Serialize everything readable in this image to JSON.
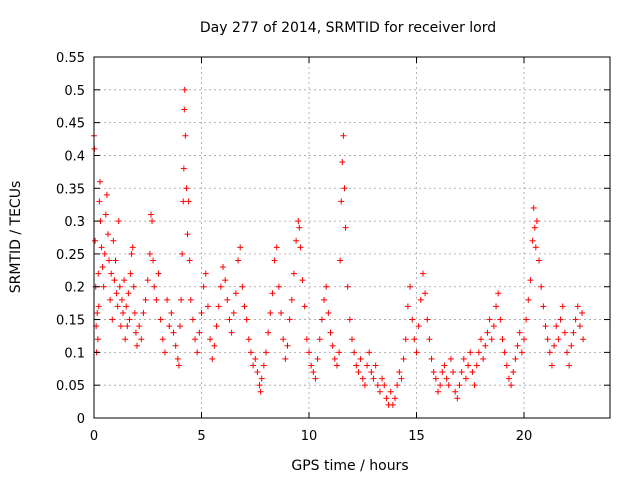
{
  "chart_data": {
    "type": "scatter",
    "title": "Day 277 of 2014, SRMTID for receiver lord",
    "xlabel": "GPS time / hours",
    "ylabel": "SRMTID / TECUs",
    "xlim": [
      0,
      24
    ],
    "ylim": [
      0,
      0.55
    ],
    "xticks": [
      0,
      5,
      10,
      15,
      20
    ],
    "xtick_labels": [
      "0",
      "5",
      "10",
      "15",
      "20"
    ],
    "yticks": [
      0,
      0.05,
      0.1,
      0.15,
      0.2,
      0.25,
      0.3,
      0.35,
      0.4,
      0.45,
      0.5,
      0.55
    ],
    "ytick_labels": [
      "0",
      "0.05",
      "0.1",
      "0.15",
      "0.2",
      "0.25",
      "0.3",
      "0.35",
      "0.4",
      "0.45",
      "0.5",
      "0.55"
    ],
    "grid": true,
    "marker": "+",
    "color": "#ff0000",
    "series": [
      {
        "name": "SRMTID",
        "points": [
          [
            0.0,
            0.43
          ],
          [
            0.02,
            0.41
          ],
          [
            0.05,
            0.27
          ],
          [
            0.08,
            0.2
          ],
          [
            0.1,
            0.14
          ],
          [
            0.12,
            0.1
          ],
          [
            0.15,
            0.16
          ],
          [
            0.18,
            0.12
          ],
          [
            0.2,
            0.22
          ],
          [
            0.22,
            0.17
          ],
          [
            0.25,
            0.33
          ],
          [
            0.28,
            0.36
          ],
          [
            0.3,
            0.3
          ],
          [
            0.35,
            0.26
          ],
          [
            0.4,
            0.23
          ],
          [
            0.45,
            0.2
          ],
          [
            0.5,
            0.25
          ],
          [
            0.55,
            0.31
          ],
          [
            0.6,
            0.34
          ],
          [
            0.65,
            0.28
          ],
          [
            0.7,
            0.24
          ],
          [
            0.75,
            0.18
          ],
          [
            0.8,
            0.22
          ],
          [
            0.85,
            0.15
          ],
          [
            0.9,
            0.27
          ],
          [
            0.95,
            0.21
          ],
          [
            1.0,
            0.24
          ],
          [
            1.05,
            0.19
          ],
          [
            1.1,
            0.17
          ],
          [
            1.15,
            0.3
          ],
          [
            1.2,
            0.2
          ],
          [
            1.25,
            0.14
          ],
          [
            1.3,
            0.18
          ],
          [
            1.35,
            0.16
          ],
          [
            1.4,
            0.21
          ],
          [
            1.45,
            0.12
          ],
          [
            1.5,
            0.17
          ],
          [
            1.55,
            0.14
          ],
          [
            1.6,
            0.19
          ],
          [
            1.65,
            0.15
          ],
          [
            1.7,
            0.22
          ],
          [
            1.75,
            0.25
          ],
          [
            1.8,
            0.26
          ],
          [
            1.85,
            0.2
          ],
          [
            1.9,
            0.16
          ],
          [
            1.95,
            0.13
          ],
          [
            2.0,
            0.11
          ],
          [
            2.1,
            0.14
          ],
          [
            2.2,
            0.12
          ],
          [
            2.3,
            0.16
          ],
          [
            2.4,
            0.18
          ],
          [
            2.5,
            0.21
          ],
          [
            2.6,
            0.25
          ],
          [
            2.65,
            0.31
          ],
          [
            2.7,
            0.3
          ],
          [
            2.75,
            0.24
          ],
          [
            2.8,
            0.2
          ],
          [
            2.9,
            0.18
          ],
          [
            3.0,
            0.22
          ],
          [
            3.1,
            0.15
          ],
          [
            3.2,
            0.12
          ],
          [
            3.3,
            0.1
          ],
          [
            3.4,
            0.18
          ],
          [
            3.5,
            0.14
          ],
          [
            3.6,
            0.16
          ],
          [
            3.7,
            0.13
          ],
          [
            3.8,
            0.11
          ],
          [
            3.9,
            0.09
          ],
          [
            3.95,
            0.08
          ],
          [
            4.0,
            0.14
          ],
          [
            4.05,
            0.18
          ],
          [
            4.1,
            0.25
          ],
          [
            4.15,
            0.33
          ],
          [
            4.18,
            0.38
          ],
          [
            4.2,
            0.47
          ],
          [
            4.22,
            0.5
          ],
          [
            4.25,
            0.43
          ],
          [
            4.3,
            0.35
          ],
          [
            4.35,
            0.28
          ],
          [
            4.4,
            0.33
          ],
          [
            4.45,
            0.24
          ],
          [
            4.5,
            0.18
          ],
          [
            4.6,
            0.15
          ],
          [
            4.7,
            0.12
          ],
          [
            4.8,
            0.1
          ],
          [
            4.9,
            0.13
          ],
          [
            5.0,
            0.16
          ],
          [
            5.1,
            0.2
          ],
          [
            5.2,
            0.22
          ],
          [
            5.3,
            0.17
          ],
          [
            5.4,
            0.12
          ],
          [
            5.5,
            0.09
          ],
          [
            5.6,
            0.11
          ],
          [
            5.7,
            0.14
          ],
          [
            5.8,
            0.17
          ],
          [
            5.9,
            0.2
          ],
          [
            6.0,
            0.23
          ],
          [
            6.1,
            0.21
          ],
          [
            6.2,
            0.18
          ],
          [
            6.3,
            0.15
          ],
          [
            6.4,
            0.13
          ],
          [
            6.5,
            0.16
          ],
          [
            6.6,
            0.19
          ],
          [
            6.7,
            0.24
          ],
          [
            6.8,
            0.26
          ],
          [
            6.9,
            0.2
          ],
          [
            7.0,
            0.17
          ],
          [
            7.1,
            0.15
          ],
          [
            7.2,
            0.12
          ],
          [
            7.3,
            0.1
          ],
          [
            7.4,
            0.08
          ],
          [
            7.5,
            0.09
          ],
          [
            7.6,
            0.07
          ],
          [
            7.7,
            0.05
          ],
          [
            7.75,
            0.04
          ],
          [
            7.8,
            0.06
          ],
          [
            7.9,
            0.08
          ],
          [
            8.0,
            0.1
          ],
          [
            8.1,
            0.13
          ],
          [
            8.2,
            0.16
          ],
          [
            8.3,
            0.19
          ],
          [
            8.4,
            0.24
          ],
          [
            8.5,
            0.26
          ],
          [
            8.6,
            0.2
          ],
          [
            8.7,
            0.16
          ],
          [
            8.8,
            0.12
          ],
          [
            8.9,
            0.09
          ],
          [
            9.0,
            0.11
          ],
          [
            9.1,
            0.15
          ],
          [
            9.2,
            0.18
          ],
          [
            9.3,
            0.22
          ],
          [
            9.4,
            0.27
          ],
          [
            9.5,
            0.3
          ],
          [
            9.55,
            0.29
          ],
          [
            9.6,
            0.26
          ],
          [
            9.7,
            0.21
          ],
          [
            9.8,
            0.17
          ],
          [
            9.9,
            0.12
          ],
          [
            10.0,
            0.1
          ],
          [
            10.1,
            0.08
          ],
          [
            10.2,
            0.07
          ],
          [
            10.3,
            0.06
          ],
          [
            10.4,
            0.09
          ],
          [
            10.5,
            0.12
          ],
          [
            10.6,
            0.15
          ],
          [
            10.7,
            0.18
          ],
          [
            10.8,
            0.2
          ],
          [
            10.9,
            0.16
          ],
          [
            11.0,
            0.13
          ],
          [
            11.1,
            0.11
          ],
          [
            11.2,
            0.09
          ],
          [
            11.3,
            0.08
          ],
          [
            11.4,
            0.1
          ],
          [
            11.45,
            0.24
          ],
          [
            11.5,
            0.33
          ],
          [
            11.55,
            0.39
          ],
          [
            11.6,
            0.43
          ],
          [
            11.65,
            0.35
          ],
          [
            11.7,
            0.29
          ],
          [
            11.8,
            0.2
          ],
          [
            11.9,
            0.15
          ],
          [
            12.0,
            0.12
          ],
          [
            12.1,
            0.1
          ],
          [
            12.2,
            0.08
          ],
          [
            12.3,
            0.07
          ],
          [
            12.4,
            0.09
          ],
          [
            12.5,
            0.06
          ],
          [
            12.6,
            0.05
          ],
          [
            12.7,
            0.08
          ],
          [
            12.8,
            0.1
          ],
          [
            12.9,
            0.07
          ],
          [
            13.0,
            0.06
          ],
          [
            13.1,
            0.08
          ],
          [
            13.2,
            0.05
          ],
          [
            13.3,
            0.04
          ],
          [
            13.4,
            0.06
          ],
          [
            13.5,
            0.05
          ],
          [
            13.6,
            0.03
          ],
          [
            13.7,
            0.02
          ],
          [
            13.8,
            0.04
          ],
          [
            13.9,
            0.02
          ],
          [
            14.0,
            0.03
          ],
          [
            14.1,
            0.05
          ],
          [
            14.2,
            0.07
          ],
          [
            14.3,
            0.06
          ],
          [
            14.4,
            0.09
          ],
          [
            14.5,
            0.12
          ],
          [
            14.6,
            0.17
          ],
          [
            14.7,
            0.2
          ],
          [
            14.8,
            0.15
          ],
          [
            14.9,
            0.12
          ],
          [
            15.0,
            0.1
          ],
          [
            15.1,
            0.14
          ],
          [
            15.2,
            0.18
          ],
          [
            15.3,
            0.22
          ],
          [
            15.4,
            0.19
          ],
          [
            15.5,
            0.15
          ],
          [
            15.6,
            0.12
          ],
          [
            15.7,
            0.09
          ],
          [
            15.8,
            0.07
          ],
          [
            15.9,
            0.06
          ],
          [
            16.0,
            0.04
          ],
          [
            16.1,
            0.05
          ],
          [
            16.2,
            0.07
          ],
          [
            16.3,
            0.08
          ],
          [
            16.4,
            0.06
          ],
          [
            16.5,
            0.05
          ],
          [
            16.6,
            0.09
          ],
          [
            16.7,
            0.07
          ],
          [
            16.8,
            0.04
          ],
          [
            16.9,
            0.03
          ],
          [
            17.0,
            0.05
          ],
          [
            17.1,
            0.07
          ],
          [
            17.2,
            0.09
          ],
          [
            17.3,
            0.06
          ],
          [
            17.4,
            0.08
          ],
          [
            17.5,
            0.1
          ],
          [
            17.6,
            0.07
          ],
          [
            17.7,
            0.05
          ],
          [
            17.8,
            0.08
          ],
          [
            17.9,
            0.1
          ],
          [
            18.0,
            0.12
          ],
          [
            18.1,
            0.09
          ],
          [
            18.2,
            0.11
          ],
          [
            18.3,
            0.13
          ],
          [
            18.4,
            0.15
          ],
          [
            18.5,
            0.12
          ],
          [
            18.6,
            0.14
          ],
          [
            18.7,
            0.17
          ],
          [
            18.8,
            0.19
          ],
          [
            18.9,
            0.15
          ],
          [
            19.0,
            0.12
          ],
          [
            19.1,
            0.1
          ],
          [
            19.2,
            0.08
          ],
          [
            19.3,
            0.06
          ],
          [
            19.4,
            0.05
          ],
          [
            19.5,
            0.07
          ],
          [
            19.6,
            0.09
          ],
          [
            19.7,
            0.11
          ],
          [
            19.8,
            0.13
          ],
          [
            19.9,
            0.1
          ],
          [
            20.0,
            0.12
          ],
          [
            20.1,
            0.15
          ],
          [
            20.2,
            0.18
          ],
          [
            20.3,
            0.21
          ],
          [
            20.4,
            0.27
          ],
          [
            20.45,
            0.32
          ],
          [
            20.5,
            0.29
          ],
          [
            20.55,
            0.26
          ],
          [
            20.6,
            0.3
          ],
          [
            20.7,
            0.24
          ],
          [
            20.8,
            0.2
          ],
          [
            20.9,
            0.17
          ],
          [
            21.0,
            0.14
          ],
          [
            21.1,
            0.12
          ],
          [
            21.2,
            0.1
          ],
          [
            21.3,
            0.08
          ],
          [
            21.4,
            0.11
          ],
          [
            21.5,
            0.14
          ],
          [
            21.6,
            0.12
          ],
          [
            21.7,
            0.15
          ],
          [
            21.8,
            0.17
          ],
          [
            21.9,
            0.13
          ],
          [
            22.0,
            0.1
          ],
          [
            22.1,
            0.08
          ],
          [
            22.2,
            0.11
          ],
          [
            22.3,
            0.13
          ],
          [
            22.4,
            0.15
          ],
          [
            22.5,
            0.17
          ],
          [
            22.6,
            0.14
          ],
          [
            22.7,
            0.16
          ],
          [
            22.75,
            0.12
          ]
        ]
      }
    ]
  }
}
